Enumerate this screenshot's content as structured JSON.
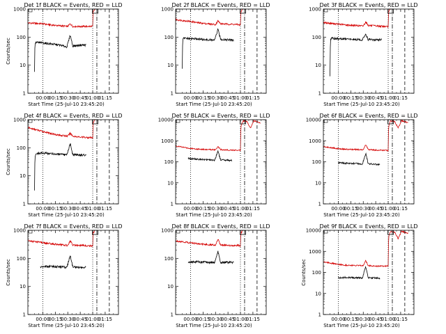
{
  "chart_data": [
    {
      "type": "line",
      "title": "Det 1f BLACK = Events, RED = LLD",
      "xlabel": "Start Time (25-Jul-10 23:45:20)",
      "ylabel": "Counts/sec",
      "yscale": "log",
      "ylim": [
        1,
        1000
      ],
      "yticks": [
        "1",
        "10",
        "100",
        "1000"
      ],
      "xticks": [
        "00:00",
        "00:15",
        "00:30",
        "00:45",
        "01:00",
        "01:15"
      ],
      "xlim_minutes": [
        -18,
        91
      ],
      "vlines_minutes": {
        "dotted": [
          0,
          60
        ],
        "dashdot": [
          65
        ],
        "dashed": [
          80
        ]
      },
      "marker_box_minutes": 63,
      "series": [
        {
          "color": "#d40000",
          "x_minutes": [
            -18,
            0,
            10,
            20,
            30,
            33,
            36,
            45,
            57,
            60,
            60.5,
            63
          ],
          "values": [
            320,
            300,
            270,
            255,
            240,
            300,
            240,
            240,
            240,
            240,
            800,
            1000
          ]
        },
        {
          "color": "#000000",
          "x_minutes": [
            -10,
            -9.5,
            -8,
            0,
            10,
            20,
            29,
            33,
            36,
            45,
            52
          ],
          "values": [
            6,
            60,
            65,
            62,
            57,
            52,
            45,
            120,
            48,
            52,
            52
          ]
        }
      ]
    },
    {
      "type": "line",
      "title": "Det 2f BLACK = Events, RED = LLD",
      "xlabel": "Start Time (25-Jul-10 23:45:20)",
      "ylabel": "",
      "yscale": "log",
      "ylim": [
        1,
        1000
      ],
      "yticks": [
        "1",
        "10",
        "100",
        "1000"
      ],
      "xticks": [
        "00:00",
        "00:15",
        "00:30",
        "00:45",
        "01:00",
        "01:15"
      ],
      "xlim_minutes": [
        -18,
        91
      ],
      "vlines_minutes": {
        "dotted": [
          0,
          60
        ],
        "dashdot": [
          65
        ],
        "dashed": [
          80
        ]
      },
      "marker_box_minutes": 63,
      "series": [
        {
          "color": "#d40000",
          "x_minutes": [
            -18,
            0,
            10,
            20,
            30,
            33,
            36,
            45,
            57,
            60,
            60.5,
            63
          ],
          "values": [
            420,
            360,
            320,
            300,
            280,
            380,
            300,
            290,
            280,
            270,
            800,
            1000
          ]
        },
        {
          "color": "#000000",
          "x_minutes": [
            -10,
            -9.5,
            -8,
            0,
            10,
            20,
            29,
            33,
            36,
            45,
            52
          ],
          "values": [
            7,
            85,
            90,
            88,
            85,
            80,
            78,
            190,
            85,
            80,
            78
          ]
        }
      ]
    },
    {
      "type": "line",
      "title": "Det 3f BLACK = Events, RED = LLD",
      "xlabel": "Start Time (25-Jul-10 23:45:20)",
      "ylabel": "",
      "yscale": "log",
      "ylim": [
        1,
        1000
      ],
      "yticks": [
        "1",
        "10",
        "100",
        "1000"
      ],
      "xticks": [
        "00:00",
        "00:15",
        "00:30",
        "00:45",
        "01:00",
        "01:15"
      ],
      "xlim_minutes": [
        -18,
        91
      ],
      "vlines_minutes": {
        "dotted": [
          0,
          60
        ],
        "dashdot": [
          65
        ],
        "dashed": [
          80
        ]
      },
      "marker_box_minutes": 63,
      "series": [
        {
          "color": "#d40000",
          "x_minutes": [
            -18,
            0,
            10,
            20,
            30,
            33,
            36,
            45,
            57,
            60,
            60.5,
            63
          ],
          "values": [
            330,
            290,
            270,
            260,
            250,
            350,
            260,
            250,
            240,
            230,
            800,
            1000
          ]
        },
        {
          "color": "#000000",
          "x_minutes": [
            -10,
            -9.5,
            -8,
            0,
            10,
            20,
            29,
            33,
            36,
            45,
            52
          ],
          "values": [
            4,
            85,
            90,
            88,
            85,
            82,
            80,
            130,
            82,
            80,
            80
          ]
        }
      ]
    },
    {
      "type": "line",
      "title": "Det 4f BLACK = Events, RED = LLD",
      "xlabel": "Start Time (25-Jul-10 23:45:20)",
      "ylabel": "Counts/sec",
      "yscale": "log",
      "ylim": [
        1,
        1000
      ],
      "yticks": [
        "1",
        "10",
        "100",
        "1000"
      ],
      "xticks": [
        "00:00",
        "00:15",
        "00:30",
        "00:45",
        "01:00",
        "01:15"
      ],
      "xlim_minutes": [
        -18,
        91
      ],
      "vlines_minutes": {
        "dotted": [
          0,
          60
        ],
        "dashdot": [
          65
        ],
        "dashed": [
          80
        ]
      },
      "marker_box_minutes": 63,
      "series": [
        {
          "color": "#d40000",
          "x_minutes": [
            -18,
            0,
            10,
            20,
            30,
            33,
            36,
            45,
            57,
            60,
            60.5,
            63
          ],
          "values": [
            520,
            380,
            320,
            280,
            260,
            330,
            260,
            240,
            230,
            220,
            800,
            1000
          ]
        },
        {
          "color": "#000000",
          "x_minutes": [
            -10,
            -9.5,
            -8,
            0,
            10,
            20,
            29,
            33,
            36,
            45,
            52
          ],
          "values": [
            3,
            50,
            62,
            65,
            62,
            58,
            55,
            140,
            58,
            55,
            55
          ]
        }
      ]
    },
    {
      "type": "line",
      "title": "Det 5f BLACK = Events, RED = LLD",
      "xlabel": "Start Time (25-Jul-10 23:45:20)",
      "ylabel": "",
      "yscale": "log",
      "ylim": [
        1,
        10000
      ],
      "yticks": [
        "1",
        "10",
        "100",
        "1000",
        "10000"
      ],
      "xticks": [
        "00:00",
        "00:15",
        "00:30",
        "00:45",
        "01:00",
        "01:15"
      ],
      "xlim_minutes": [
        -18,
        91
      ],
      "vlines_minutes": {
        "dotted": [
          0,
          60
        ],
        "dashdot": [
          65
        ],
        "dashed": [
          80
        ]
      },
      "marker_box_minutes": 63,
      "series": [
        {
          "color": "#d40000",
          "x_minutes": [
            -18,
            0,
            10,
            20,
            30,
            33,
            36,
            45,
            57,
            60,
            60.5,
            63,
            68,
            72,
            76,
            80,
            84
          ],
          "values": [
            560,
            430,
            400,
            380,
            380,
            540,
            380,
            360,
            360,
            350,
            5000,
            9000,
            8000,
            4000,
            9000,
            8000,
            7000
          ]
        },
        {
          "color": "#000000",
          "x_minutes": [
            -3,
            0,
            10,
            20,
            29,
            33,
            36,
            45,
            50
          ],
          "values": [
            145,
            140,
            130,
            125,
            120,
            330,
            125,
            118,
            115
          ]
        }
      ]
    },
    {
      "type": "line",
      "title": "Det 6f BLACK = Events, RED = LLD",
      "xlabel": "Start Time (25-Jul-10 23:45:20)",
      "ylabel": "",
      "yscale": "log",
      "ylim": [
        1,
        10000
      ],
      "yticks": [
        "1",
        "10",
        "100",
        "1000",
        "10000"
      ],
      "xticks": [
        "00:00",
        "00:15",
        "00:30",
        "00:45",
        "01:00",
        "01:15"
      ],
      "xlim_minutes": [
        -18,
        91
      ],
      "vlines_minutes": {
        "dotted": [
          0,
          60
        ],
        "dashdot": [
          65
        ],
        "dashed": [
          80
        ]
      },
      "marker_box_minutes": 63,
      "series": [
        {
          "color": "#d40000",
          "x_minutes": [
            -18,
            0,
            10,
            20,
            30,
            33,
            36,
            45,
            57,
            60,
            60.5,
            63,
            68,
            72,
            76,
            80,
            84
          ],
          "values": [
            520,
            420,
            390,
            380,
            370,
            650,
            380,
            360,
            350,
            340,
            5000,
            9000,
            8000,
            4000,
            9000,
            8000,
            7000
          ]
        },
        {
          "color": "#000000",
          "x_minutes": [
            0,
            10,
            20,
            29,
            33,
            36,
            45,
            50
          ],
          "values": [
            90,
            85,
            82,
            80,
            250,
            80,
            75,
            72
          ]
        }
      ]
    },
    {
      "type": "line",
      "title": "Det 7f BLACK = Events, RED = LLD",
      "xlabel": "Start Time (25-Jul-10 23:45:20)",
      "ylabel": "Counts/sec",
      "yscale": "log",
      "ylim": [
        1,
        1000
      ],
      "yticks": [
        "1",
        "10",
        "100",
        "1000"
      ],
      "xticks": [
        "00:00",
        "00:15",
        "00:30",
        "00:45",
        "01:00",
        "01:15"
      ],
      "xlim_minutes": [
        -18,
        91
      ],
      "vlines_minutes": {
        "dotted": [
          0,
          60
        ],
        "dashdot": [
          65
        ],
        "dashed": [
          80
        ]
      },
      "marker_box_minutes": 63,
      "series": [
        {
          "color": "#d40000",
          "x_minutes": [
            -18,
            0,
            10,
            20,
            30,
            33,
            36,
            45,
            57,
            60,
            60.5,
            63
          ],
          "values": [
            430,
            360,
            330,
            310,
            290,
            430,
            300,
            290,
            280,
            280,
            800,
            1000
          ]
        },
        {
          "color": "#000000",
          "x_minutes": [
            -3,
            0,
            10,
            20,
            29,
            33,
            36,
            45,
            52
          ],
          "values": [
            50,
            50,
            52,
            50,
            48,
            130,
            50,
            48,
            48
          ]
        }
      ]
    },
    {
      "type": "line",
      "title": "Det 8f BLACK = Events, RED = LLD",
      "xlabel": "Start Time (25-Jul-10 23:45:20)",
      "ylabel": "",
      "yscale": "log",
      "ylim": [
        1,
        1000
      ],
      "yticks": [
        "1",
        "10",
        "100",
        "1000"
      ],
      "xticks": [
        "00:00",
        "00:15",
        "00:30",
        "00:45",
        "01:00",
        "01:15"
      ],
      "xlim_minutes": [
        -18,
        91
      ],
      "vlines_minutes": {
        "dotted": [
          0,
          60
        ],
        "dashdot": [
          65
        ],
        "dashed": [
          80
        ]
      },
      "marker_box_minutes": 63,
      "series": [
        {
          "color": "#d40000",
          "x_minutes": [
            -18,
            0,
            10,
            20,
            30,
            33,
            36,
            45,
            57,
            60,
            60.5,
            63
          ],
          "values": [
            420,
            360,
            330,
            310,
            300,
            480,
            300,
            290,
            290,
            280,
            800,
            1000
          ]
        },
        {
          "color": "#000000",
          "x_minutes": [
            -3,
            0,
            10,
            20,
            29,
            33,
            36,
            45,
            52
          ],
          "values": [
            75,
            75,
            75,
            72,
            72,
            170,
            72,
            72,
            72
          ]
        }
      ]
    },
    {
      "type": "line",
      "title": "Det 9f BLACK = Events, RED = LLD",
      "xlabel": "Start Time (25-Jul-10 23:45:20)",
      "ylabel": "Counts/sec",
      "yscale": "log",
      "ylim": [
        1,
        10000
      ],
      "yticks": [
        "1",
        "10",
        "100",
        "1000",
        "10000"
      ],
      "xticks": [
        "00:00",
        "00:15",
        "00:30",
        "00:45",
        "01:00",
        "01:15"
      ],
      "xlim_minutes": [
        -18,
        91
      ],
      "vlines_minutes": {
        "dotted": [
          0,
          60
        ],
        "dashdot": [
          65
        ],
        "dashed": [
          80
        ]
      },
      "marker_box_minutes": 63,
      "series": [
        {
          "color": "#d40000",
          "x_minutes": [
            -18,
            0,
            10,
            20,
            30,
            33,
            36,
            45,
            57,
            60,
            60.5,
            63,
            68,
            72,
            76,
            80,
            84
          ],
          "values": [
            320,
            240,
            220,
            210,
            210,
            380,
            210,
            200,
            200,
            200,
            5000,
            9000,
            8000,
            4000,
            9000,
            8000,
            7000
          ]
        },
        {
          "color": "#000000",
          "x_minutes": [
            0,
            10,
            20,
            29,
            33,
            36,
            45,
            50
          ],
          "values": [
            55,
            58,
            56,
            55,
            190,
            55,
            55,
            52
          ]
        }
      ]
    }
  ]
}
